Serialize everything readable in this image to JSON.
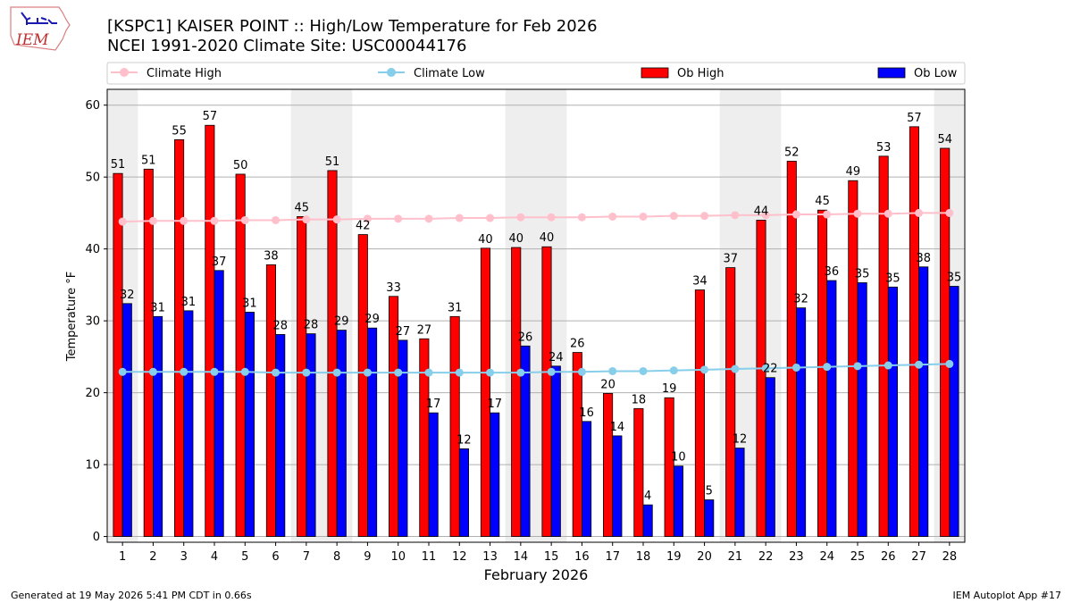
{
  "title": "[KSPC1] KAISER POINT :: High/Low Temperature for Feb 2026",
  "subtitle": "NCEI 1991-2020 Climate Site: USC00044176",
  "logo_text": "IEM",
  "footer_left": "Generated at 19 May 2026 5:41 PM CDT in 0.66s",
  "footer_right": "IEM Autoplot App #17",
  "colors": {
    "ob_high": "#ff0000",
    "ob_low": "#0000ff",
    "climate_high": "#ffc0cb",
    "climate_low": "#87ceeb",
    "weekend_shade": "#eeeeee",
    "grid": "#b0b0b0"
  },
  "chart_data": {
    "type": "bar",
    "xlabel": "February 2026",
    "ylabel": "Temperature °F",
    "ylim": [
      -0.8,
      62.2
    ],
    "yticks": [
      0,
      10,
      20,
      30,
      40,
      50,
      60
    ],
    "grid": "horizontal",
    "legend_position": "top",
    "categories": [
      "1",
      "2",
      "3",
      "4",
      "5",
      "6",
      "7",
      "8",
      "9",
      "10",
      "11",
      "12",
      "13",
      "14",
      "15",
      "16",
      "17",
      "18",
      "19",
      "20",
      "21",
      "22",
      "23",
      "24",
      "25",
      "26",
      "27",
      "28"
    ],
    "weekend_days": [
      1,
      7,
      8,
      14,
      15,
      21,
      22,
      28
    ],
    "series": [
      {
        "name": "Ob High",
        "kind": "bar",
        "values": [
          50.5,
          51.1,
          55.2,
          57.2,
          50.4,
          37.8,
          44.5,
          50.9,
          42.0,
          33.4,
          27.5,
          30.6,
          40.1,
          40.2,
          40.3,
          25.6,
          19.9,
          17.8,
          19.3,
          34.3,
          37.4,
          44.0,
          52.2,
          45.4,
          49.5,
          52.9,
          57.0,
          54.0
        ],
        "labels": [
          "51",
          "51",
          "55",
          "57",
          "50",
          "38",
          "45",
          "51",
          "42",
          "33",
          "27",
          "31",
          "40",
          "40",
          "40",
          "26",
          "20",
          "18",
          "19",
          "34",
          "37",
          "44",
          "52",
          "45",
          "49",
          "53",
          "57",
          "54"
        ]
      },
      {
        "name": "Ob Low",
        "kind": "bar",
        "values": [
          32.4,
          30.6,
          31.4,
          37.0,
          31.2,
          28.1,
          28.2,
          28.7,
          29.0,
          27.3,
          17.2,
          12.2,
          17.2,
          26.5,
          23.7,
          16.0,
          14.0,
          4.4,
          9.8,
          5.1,
          12.3,
          22.1,
          31.8,
          35.6,
          35.3,
          34.7,
          37.5,
          34.8
        ],
        "labels": [
          "32",
          "31",
          "31",
          "37",
          "31",
          "28",
          "28",
          "29",
          "29",
          "27",
          "17",
          "12",
          "17",
          "26",
          "24",
          "16",
          "14",
          "4",
          "10",
          "5",
          "12",
          "22",
          "32",
          "36",
          "35",
          "35",
          "38",
          "35"
        ]
      },
      {
        "name": "Climate High",
        "kind": "line",
        "values": [
          43.8,
          43.9,
          43.9,
          43.9,
          44.0,
          44.0,
          44.1,
          44.1,
          44.2,
          44.2,
          44.2,
          44.3,
          44.3,
          44.4,
          44.4,
          44.4,
          44.5,
          44.5,
          44.6,
          44.6,
          44.7,
          44.7,
          44.8,
          44.8,
          44.9,
          44.9,
          45.0,
          45.0
        ]
      },
      {
        "name": "Climate Low",
        "kind": "line",
        "values": [
          22.9,
          22.9,
          22.9,
          22.9,
          22.9,
          22.8,
          22.8,
          22.8,
          22.8,
          22.8,
          22.8,
          22.8,
          22.8,
          22.8,
          22.9,
          22.9,
          23.0,
          23.0,
          23.1,
          23.2,
          23.3,
          23.4,
          23.5,
          23.6,
          23.7,
          23.8,
          23.9,
          24.0
        ]
      }
    ]
  }
}
